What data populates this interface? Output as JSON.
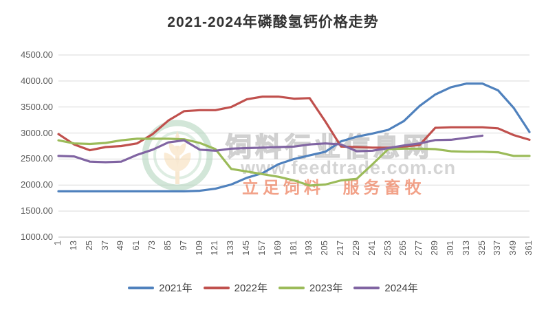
{
  "title": "2021-2024年磷酸氢钙价格走势",
  "watermark": {
    "site_name": "饲料行业信息网",
    "site_url": "www.feedtrade.com.cn",
    "slogan": "立足饲料 服务畜牧",
    "logo": "wheat-circle-logo"
  },
  "colors": {
    "series_2021": "#4F81BD",
    "series_2022": "#C0504D",
    "series_2023": "#9BBB59",
    "series_2024": "#8064A2",
    "gridline": "#D9D9D9",
    "axis_line": "#BFBFBF",
    "axis_text": "#595959",
    "title_text": "#333333"
  },
  "chart_data": {
    "type": "line",
    "title": "2021-2024年磷酸氢钙价格走势",
    "xlabel": "",
    "ylabel": "",
    "ylim": [
      1000,
      4500
    ],
    "y_tick_step": 500,
    "y_ticks": [
      "4500.00",
      "4000.00",
      "3500.00",
      "3000.00",
      "2500.00",
      "2000.00",
      "1500.00",
      "1000.00"
    ],
    "grid": "horizontal",
    "legend_position": "bottom",
    "categories": [
      1,
      13,
      25,
      37,
      49,
      61,
      73,
      85,
      97,
      109,
      121,
      133,
      145,
      157,
      169,
      181,
      193,
      205,
      217,
      229,
      241,
      253,
      265,
      277,
      289,
      301,
      313,
      325,
      337,
      349,
      361
    ],
    "series": [
      {
        "name": "2021年",
        "color": "#4F81BD",
        "values": [
          1880,
          1880,
          1880,
          1880,
          1880,
          1880,
          1880,
          1880,
          1880,
          1890,
          1930,
          2010,
          2140,
          2230,
          2400,
          2500,
          2570,
          2640,
          2840,
          2930,
          2990,
          3060,
          3230,
          3520,
          3740,
          3880,
          3950,
          3950,
          3820,
          3480,
          3020
        ]
      },
      {
        "name": "2022年",
        "color": "#C0504D",
        "values": [
          2980,
          2780,
          2670,
          2730,
          2750,
          2800,
          2980,
          3240,
          3420,
          3440,
          3440,
          3500,
          3650,
          3700,
          3700,
          3660,
          3670,
          3220,
          2740,
          2730,
          2720,
          2720,
          2740,
          2770,
          3100,
          3110,
          3110,
          3110,
          3090,
          2960,
          2870
        ]
      },
      {
        "name": "2023年",
        "color": "#9BBB59",
        "values": [
          2860,
          2800,
          2790,
          2810,
          2860,
          2890,
          2890,
          2890,
          2880,
          2810,
          2690,
          2310,
          2260,
          2210,
          2160,
          2090,
          1990,
          2010,
          2090,
          2120,
          2400,
          2690,
          2700,
          2700,
          2690,
          2650,
          2640,
          2640,
          2630,
          2560,
          2560
        ]
      },
      {
        "name": "2024年",
        "color": "#8064A2",
        "values": [
          2560,
          2550,
          2450,
          2440,
          2450,
          2580,
          2680,
          2820,
          2860,
          2680,
          2660,
          2700,
          2710,
          2720,
          2730,
          2740,
          2780,
          2800,
          2780,
          2650,
          2660,
          2710,
          2760,
          2800,
          2865,
          2870,
          2910,
          2950,
          null,
          null,
          null
        ]
      }
    ]
  }
}
